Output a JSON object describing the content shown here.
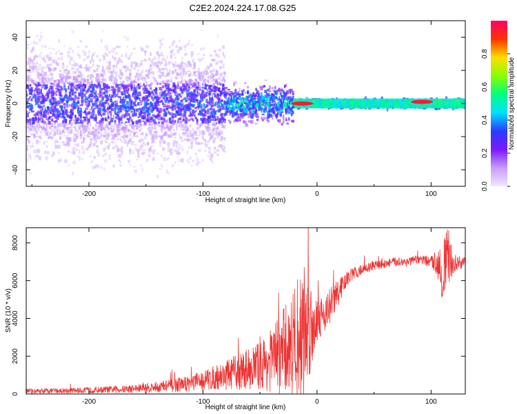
{
  "figure": {
    "title": "C2E2.2024.224.17.08.G25"
  },
  "chart_data": [
    {
      "type": "heatmap",
      "xlabel": "Height of straight line (km)",
      "ylabel": "Frequency (Hz)",
      "xlim": [
        -255,
        130
      ],
      "ylim": [
        -50,
        50
      ],
      "xticks": [
        -200,
        -100,
        0,
        100
      ],
      "yticks": [
        -40,
        -20,
        0,
        20,
        40
      ],
      "colorbar": {
        "label": "Normalized spectral amplitude",
        "range": [
          0,
          1
        ],
        "ticks": [
          "0.0",
          "0.2",
          "0.4",
          "0.6",
          "0.8"
        ],
        "colormap": [
          "#f0e8ff",
          "#c79cff",
          "#7b18ff",
          "#2a3cff",
          "#00e0ff",
          "#00ff80",
          "#88ff00",
          "#ffdd00",
          "#ff3300",
          "#ff0066"
        ]
      },
      "features": [
        {
          "x_range": [
            -255,
            -80
          ],
          "freq_spread_hz": 48,
          "amplitude": 0.25
        },
        {
          "x_range": [
            -80,
            -20
          ],
          "freq_spread_hz": 15,
          "amplitude": 0.35
        },
        {
          "x_range": [
            -20,
            130
          ],
          "freq_spread_hz": 4,
          "amplitude": 0.55
        },
        {
          "x": -13,
          "freq_hz": 0,
          "amplitude": 0.95
        },
        {
          "x": 92,
          "freq_hz": 1,
          "amplitude": 0.95
        }
      ]
    },
    {
      "type": "line",
      "xlabel": "Height of straight line (km)",
      "ylabel": "SNR (10 * v/v)",
      "xlim": [
        -255,
        130
      ],
      "ylim": [
        0,
        8800
      ],
      "xticks": [
        -200,
        -100,
        0,
        100
      ],
      "yticks": [
        0,
        2000,
        4000,
        6000,
        8000
      ],
      "color": "#ee3333",
      "series": [
        {
          "x": [
            -255,
            -230,
            -200,
            -170,
            -150,
            -130,
            -110,
            -100,
            -90,
            -80,
            -70,
            -60,
            -50,
            -40,
            -35,
            -30,
            -25,
            -20,
            -15,
            -12,
            -10,
            -8,
            -5,
            0,
            5,
            10,
            15,
            20,
            25,
            30,
            40,
            50,
            60,
            70,
            80,
            90,
            100,
            105,
            110,
            115,
            120,
            130
          ],
          "values": [
            150,
            170,
            200,
            250,
            320,
            420,
            580,
            700,
            850,
            1000,
            1150,
            1350,
            1500,
            1800,
            2000,
            2300,
            2500,
            2800,
            3000,
            3200,
            3400,
            3600,
            3600,
            4000,
            4200,
            4500,
            5000,
            5500,
            6000,
            6300,
            6600,
            6800,
            6900,
            7000,
            7000,
            7100,
            7000,
            7000,
            6500,
            7200,
            6900,
            7000
          ],
          "spread": [
            120,
            140,
            160,
            200,
            260,
            340,
            460,
            550,
            650,
            800,
            950,
            1100,
            1300,
            1700,
            2000,
            2300,
            2500,
            3000,
            3500,
            3800,
            3500,
            3000,
            2500,
            1200,
            1000,
            1000,
            1000,
            700,
            400,
            350,
            300,
            250,
            250,
            250,
            250,
            250,
            300,
            700,
            1800,
            1600,
            500,
            250
          ]
        }
      ]
    }
  ]
}
